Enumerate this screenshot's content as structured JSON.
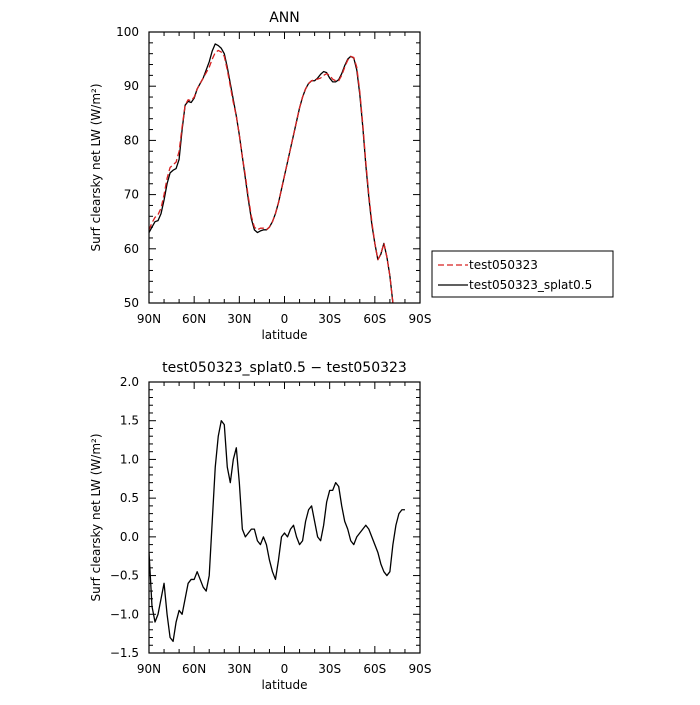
{
  "chart_data": [
    {
      "type": "line",
      "title": "ANN",
      "xlabel": "latitude",
      "ylabel": "Surf clearsky net LW (W/m²)",
      "xlim": [
        90,
        -90
      ],
      "ylim": [
        50,
        100
      ],
      "x_ticks": [
        {
          "value": 90,
          "label": "90N"
        },
        {
          "value": 60,
          "label": "60N"
        },
        {
          "value": 30,
          "label": "30N"
        },
        {
          "value": 0,
          "label": "0"
        },
        {
          "value": -30,
          "label": "30S"
        },
        {
          "value": -60,
          "label": "60S"
        },
        {
          "value": -90,
          "label": "90S"
        }
      ],
      "y_ticks": [
        {
          "value": 50,
          "label": "50"
        },
        {
          "value": 60,
          "label": "60"
        },
        {
          "value": 70,
          "label": "70"
        },
        {
          "value": 80,
          "label": "80"
        },
        {
          "value": 90,
          "label": "90"
        },
        {
          "value": 100,
          "label": "100"
        }
      ],
      "legend": {
        "placement": "right"
      },
      "series": [
        {
          "name": "test050323",
          "color": "#d62020",
          "dash": "dashed",
          "points": [
            [
              90,
              63.5
            ],
            [
              88,
              64.8
            ],
            [
              86,
              65.8
            ],
            [
              84,
              66.3
            ],
            [
              82,
              67.5
            ],
            [
              80,
              70.0
            ],
            [
              78,
              73.0
            ],
            [
              76,
              75.0
            ],
            [
              74,
              75.5
            ],
            [
              72,
              76.0
            ],
            [
              70,
              78.0
            ],
            [
              68,
              82.5
            ],
            [
              66,
              86.5
            ],
            [
              64,
              87.5
            ],
            [
              62,
              87.3
            ],
            [
              60,
              88.0
            ],
            [
              58,
              89.5
            ],
            [
              56,
              90.5
            ],
            [
              54,
              91.5
            ],
            [
              52,
              92.5
            ],
            [
              50,
              93.5
            ],
            [
              48,
              95.0
            ],
            [
              46,
              96.2
            ],
            [
              44,
              96.6
            ],
            [
              42,
              96.3
            ],
            [
              40,
              95.5
            ],
            [
              38,
              93.0
            ],
            [
              36,
              90.0
            ],
            [
              34,
              87.0
            ],
            [
              32,
              84.5
            ],
            [
              30,
              81.0
            ],
            [
              28,
              77.0
            ],
            [
              26,
              73.5
            ],
            [
              24,
              69.5
            ],
            [
              22,
              66.0
            ],
            [
              20,
              64.0
            ],
            [
              18,
              63.5
            ],
            [
              16,
              63.8
            ],
            [
              14,
              63.8
            ],
            [
              12,
              63.5
            ],
            [
              10,
              64.0
            ],
            [
              8,
              65.0
            ],
            [
              6,
              66.5
            ],
            [
              4,
              68.5
            ],
            [
              2,
              71.0
            ],
            [
              0,
              73.5
            ],
            [
              -2,
              76.0
            ],
            [
              -4,
              78.5
            ],
            [
              -6,
              81.0
            ],
            [
              -8,
              83.5
            ],
            [
              -10,
              86.0
            ],
            [
              -12,
              88.0
            ],
            [
              -14,
              89.5
            ],
            [
              -16,
              90.5
            ],
            [
              -18,
              91.0
            ],
            [
              -20,
              91.2
            ],
            [
              -22,
              91.3
            ],
            [
              -24,
              91.5
            ],
            [
              -26,
              92.0
            ],
            [
              -28,
              92.3
            ],
            [
              -30,
              92.0
            ],
            [
              -32,
              91.3
            ],
            [
              -34,
              91.0
            ],
            [
              -36,
              91.0
            ],
            [
              -38,
              92.0
            ],
            [
              -40,
              93.5
            ],
            [
              -42,
              94.8
            ],
            [
              -44,
              95.5
            ],
            [
              -46,
              95.3
            ],
            [
              -48,
              93.5
            ],
            [
              -50,
              89.0
            ],
            [
              -52,
              83.0
            ],
            [
              -54,
              76.0
            ],
            [
              -56,
              70.0
            ],
            [
              -58,
              65.0
            ],
            [
              -60,
              61.0
            ],
            [
              -62,
              58.0
            ],
            [
              -64,
              59.0
            ],
            [
              -66,
              61.0
            ],
            [
              -68,
              58.5
            ],
            [
              -70,
              55.0
            ],
            [
              -72,
              50.0
            ]
          ]
        },
        {
          "name": "test050323_splat0.5",
          "color": "#000000",
          "dash": "solid",
          "points": [
            [
              90,
              63.0
            ],
            [
              88,
              64.0
            ],
            [
              86,
              65.0
            ],
            [
              84,
              65.2
            ],
            [
              82,
              66.5
            ],
            [
              80,
              69.0
            ],
            [
              78,
              72.0
            ],
            [
              76,
              74.0
            ],
            [
              74,
              74.5
            ],
            [
              72,
              74.8
            ],
            [
              70,
              76.5
            ],
            [
              68,
              82.0
            ],
            [
              66,
              86.5
            ],
            [
              64,
              87.2
            ],
            [
              62,
              87.0
            ],
            [
              60,
              87.8
            ],
            [
              58,
              89.5
            ],
            [
              56,
              90.5
            ],
            [
              54,
              91.5
            ],
            [
              52,
              93.0
            ],
            [
              50,
              94.5
            ],
            [
              48,
              96.5
            ],
            [
              46,
              97.8
            ],
            [
              44,
              97.5
            ],
            [
              42,
              97.0
            ],
            [
              40,
              96.0
            ],
            [
              38,
              93.5
            ],
            [
              36,
              90.5
            ],
            [
              34,
              87.5
            ],
            [
              32,
              84.5
            ],
            [
              30,
              81.0
            ],
            [
              28,
              77.0
            ],
            [
              26,
              73.0
            ],
            [
              24,
              69.0
            ],
            [
              22,
              65.5
            ],
            [
              20,
              63.5
            ],
            [
              18,
              63.0
            ],
            [
              16,
              63.3
            ],
            [
              14,
              63.5
            ],
            [
              12,
              63.5
            ],
            [
              10,
              64.0
            ],
            [
              8,
              65.0
            ],
            [
              6,
              66.5
            ],
            [
              4,
              68.5
            ],
            [
              2,
              71.0
            ],
            [
              0,
              73.5
            ],
            [
              -2,
              76.0
            ],
            [
              -4,
              78.5
            ],
            [
              -6,
              81.0
            ],
            [
              -8,
              83.5
            ],
            [
              -10,
              86.0
            ],
            [
              -12,
              88.0
            ],
            [
              -14,
              89.5
            ],
            [
              -16,
              90.5
            ],
            [
              -18,
              91.0
            ],
            [
              -20,
              91.0
            ],
            [
              -22,
              91.5
            ],
            [
              -24,
              92.2
            ],
            [
              -26,
              92.7
            ],
            [
              -28,
              92.5
            ],
            [
              -30,
              91.5
            ],
            [
              -32,
              90.8
            ],
            [
              -34,
              90.8
            ],
            [
              -36,
              91.2
            ],
            [
              -38,
              92.3
            ],
            [
              -40,
              93.8
            ],
            [
              -42,
              95.0
            ],
            [
              -44,
              95.5
            ],
            [
              -46,
              95.2
            ],
            [
              -48,
              93.0
            ],
            [
              -50,
              88.5
            ],
            [
              -52,
              82.5
            ],
            [
              -54,
              75.5
            ],
            [
              -56,
              69.5
            ],
            [
              -58,
              64.5
            ],
            [
              -60,
              61.0
            ],
            [
              -62,
              58.0
            ],
            [
              -64,
              59.0
            ],
            [
              -66,
              61.0
            ],
            [
              -68,
              58.5
            ],
            [
              -70,
              55.0
            ],
            [
              -72,
              50.0
            ]
          ]
        }
      ]
    },
    {
      "type": "line",
      "title": "test050323_splat0.5 − test050323",
      "xlabel": "latitude",
      "ylabel": "Surf clearsky net LW (W/m²)",
      "xlim": [
        90,
        -90
      ],
      "ylim": [
        -1.5,
        2.0
      ],
      "x_ticks": [
        {
          "value": 90,
          "label": "90N"
        },
        {
          "value": 60,
          "label": "60N"
        },
        {
          "value": 30,
          "label": "30N"
        },
        {
          "value": 0,
          "label": "0"
        },
        {
          "value": -30,
          "label": "30S"
        },
        {
          "value": -60,
          "label": "60S"
        },
        {
          "value": -90,
          "label": "90S"
        }
      ],
      "y_ticks": [
        {
          "value": -1.5,
          "label": "−1.5"
        },
        {
          "value": -1.0,
          "label": "−1.0"
        },
        {
          "value": -0.5,
          "label": "−0.5"
        },
        {
          "value": 0.0,
          "label": "0.0"
        },
        {
          "value": 0.5,
          "label": "0.5"
        },
        {
          "value": 1.0,
          "label": "1.0"
        },
        {
          "value": 1.5,
          "label": "1.5"
        },
        {
          "value": 2.0,
          "label": "2.0"
        }
      ],
      "series": [
        {
          "color": "#000000",
          "dash": "solid",
          "points": [
            [
              90,
              -0.2
            ],
            [
              88,
              -0.9
            ],
            [
              86,
              -1.1
            ],
            [
              84,
              -1.0
            ],
            [
              82,
              -0.8
            ],
            [
              80,
              -0.6
            ],
            [
              78,
              -1.0
            ],
            [
              76,
              -1.3
            ],
            [
              74,
              -1.35
            ],
            [
              72,
              -1.1
            ],
            [
              70,
              -0.95
            ],
            [
              68,
              -1.0
            ],
            [
              66,
              -0.8
            ],
            [
              64,
              -0.6
            ],
            [
              62,
              -0.55
            ],
            [
              60,
              -0.55
            ],
            [
              58,
              -0.45
            ],
            [
              56,
              -0.55
            ],
            [
              54,
              -0.65
            ],
            [
              52,
              -0.7
            ],
            [
              50,
              -0.5
            ],
            [
              48,
              0.2
            ],
            [
              46,
              0.9
            ],
            [
              44,
              1.3
            ],
            [
              42,
              1.5
            ],
            [
              40,
              1.45
            ],
            [
              38,
              0.9
            ],
            [
              36,
              0.7
            ],
            [
              34,
              1.0
            ],
            [
              32,
              1.15
            ],
            [
              30,
              0.7
            ],
            [
              28,
              0.1
            ],
            [
              26,
              0.0
            ],
            [
              24,
              0.05
            ],
            [
              22,
              0.1
            ],
            [
              20,
              0.1
            ],
            [
              18,
              -0.05
            ],
            [
              16,
              -0.1
            ],
            [
              14,
              0.0
            ],
            [
              12,
              -0.1
            ],
            [
              10,
              -0.3
            ],
            [
              8,
              -0.45
            ],
            [
              6,
              -0.55
            ],
            [
              4,
              -0.3
            ],
            [
              2,
              0.0
            ],
            [
              0,
              0.05
            ],
            [
              -2,
              0.0
            ],
            [
              -4,
              0.1
            ],
            [
              -6,
              0.15
            ],
            [
              -8,
              0.0
            ],
            [
              -10,
              -0.1
            ],
            [
              -12,
              -0.05
            ],
            [
              -14,
              0.2
            ],
            [
              -16,
              0.35
            ],
            [
              -18,
              0.4
            ],
            [
              -20,
              0.2
            ],
            [
              -22,
              0.0
            ],
            [
              -24,
              -0.05
            ],
            [
              -26,
              0.15
            ],
            [
              -28,
              0.45
            ],
            [
              -30,
              0.6
            ],
            [
              -32,
              0.6
            ],
            [
              -34,
              0.7
            ],
            [
              -36,
              0.65
            ],
            [
              -38,
              0.4
            ],
            [
              -40,
              0.2
            ],
            [
              -42,
              0.1
            ],
            [
              -44,
              -0.05
            ],
            [
              -46,
              -0.1
            ],
            [
              -48,
              0.0
            ],
            [
              -50,
              0.05
            ],
            [
              -52,
              0.1
            ],
            [
              -54,
              0.15
            ],
            [
              -56,
              0.1
            ],
            [
              -58,
              0.0
            ],
            [
              -60,
              -0.1
            ],
            [
              -62,
              -0.2
            ],
            [
              -64,
              -0.35
            ],
            [
              -66,
              -0.45
            ],
            [
              -68,
              -0.5
            ],
            [
              -70,
              -0.45
            ],
            [
              -72,
              -0.1
            ],
            [
              -74,
              0.15
            ],
            [
              -76,
              0.3
            ],
            [
              -78,
              0.35
            ],
            [
              -80,
              0.35
            ]
          ]
        }
      ]
    }
  ]
}
